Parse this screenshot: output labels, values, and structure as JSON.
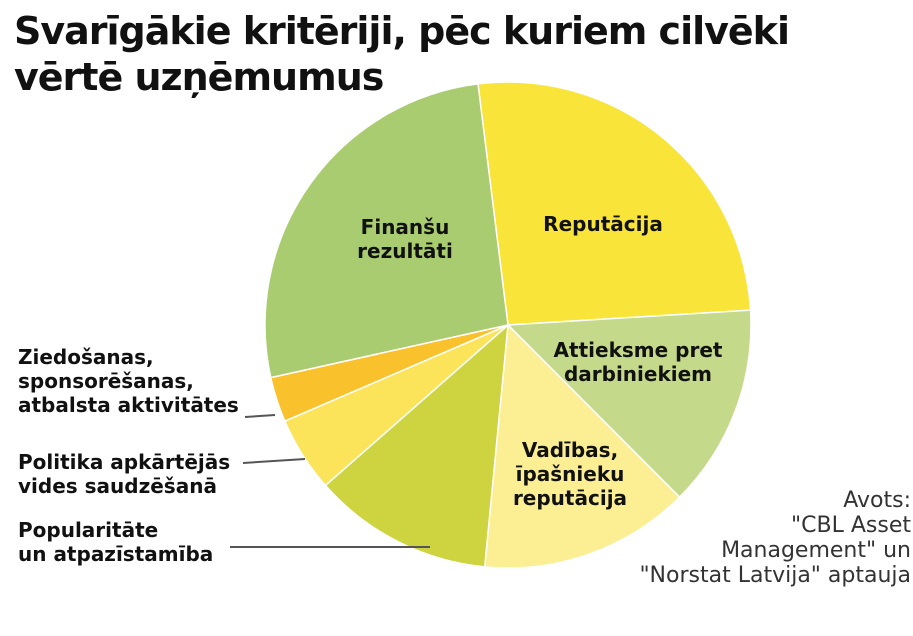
{
  "chart_data": {
    "type": "pie",
    "title": "Svarīgākie kritēriji, pēc kuriem cilvēki vērtē uzņēmumus",
    "categories": [
      "Reputācija",
      "Attieksme pret\ndarbiniekiem",
      "Vadības,\nīpašnieku\nreputācija",
      "Popularitāte\nun atpazīstamība",
      "Politika apkārtējās\nvides saudzēšanā",
      "Ziedošanas,\nsponsorēšanas,\natbalsta aktivitātes",
      "Finanšu\nrezultāti"
    ],
    "values": [
      26,
      13.5,
      14,
      12,
      5,
      3,
      26.5
    ],
    "colors": [
      "#f9e43a",
      "#c4d98a",
      "#fbee93",
      "#cdd43f",
      "#fbe35a",
      "#f9c12b",
      "#aacc70"
    ],
    "source": "Avots:\n\"CBL Asset\nManagement\" un\n\"Norstat Latvija\" aptauja"
  }
}
